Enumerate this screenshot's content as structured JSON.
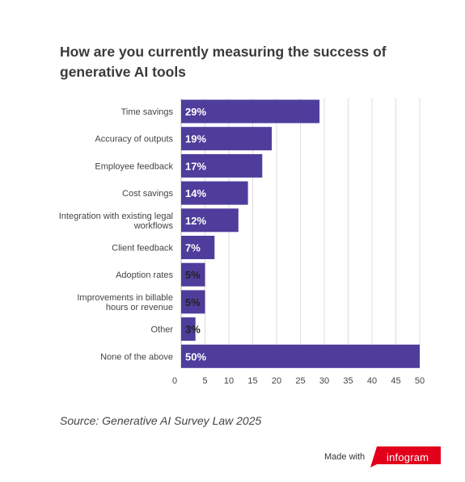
{
  "title": "How are you currently measuring the success of generative AI tools",
  "source": "Source: Generative AI Survey Law 2025",
  "footer": {
    "made_with": "Made with",
    "brand": "infogram"
  },
  "colors": {
    "bar": "#4f3d9c",
    "grid": "#dcdcdc",
    "brand": "#e2001a"
  },
  "chart_data": {
    "type": "bar",
    "orientation": "horizontal",
    "categories": [
      [
        "Time savings"
      ],
      [
        "Accuracy of outputs"
      ],
      [
        "Employee feedback"
      ],
      [
        "Cost savings"
      ],
      [
        "Integration with existing legal",
        "workflows"
      ],
      [
        "Client feedback"
      ],
      [
        "Adoption rates"
      ],
      [
        "Improvements in billable",
        "hours or revenue"
      ],
      [
        "Other"
      ],
      [
        "None of the above"
      ]
    ],
    "values": [
      29,
      19,
      17,
      14,
      12,
      7,
      5,
      5,
      3,
      50
    ],
    "labels": [
      "29%",
      "19%",
      "17%",
      "14%",
      "12%",
      "7%",
      "5%",
      "5%",
      "3%",
      "50%"
    ],
    "xlim": [
      0,
      50
    ],
    "xticks": [
      0,
      5,
      10,
      15,
      20,
      25,
      30,
      35,
      40,
      45,
      50
    ],
    "grid": true,
    "legend": "none"
  }
}
